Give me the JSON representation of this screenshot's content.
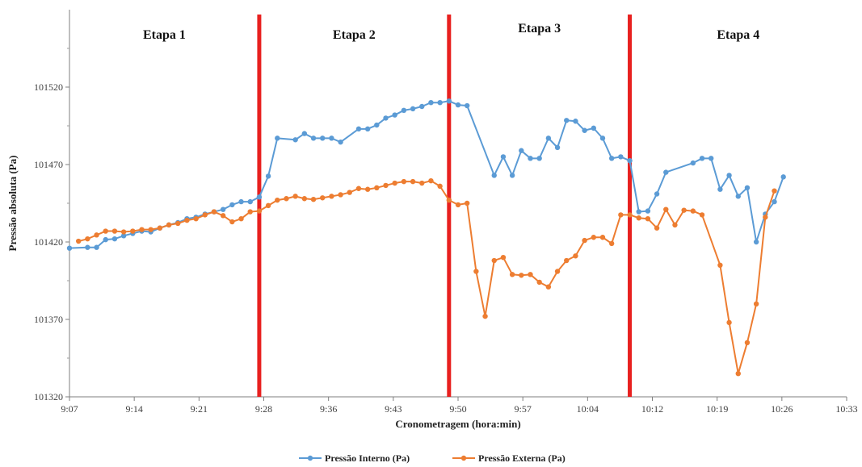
{
  "chart_data": {
    "type": "line",
    "xlabel": "Cronometragem  (hora:min)",
    "ylabel": "Pressão absoluta (Pa)",
    "ylim": [
      101320,
      101570
    ],
    "y_ticks": [
      101320,
      101370,
      101420,
      101470,
      101520
    ],
    "y_tick_labels": [
      "101320",
      "101370",
      "101420",
      "101470",
      "101520"
    ],
    "xlim": [
      "9:07",
      "10:33"
    ],
    "x_tick_labels": [
      "9:07",
      "9:14",
      "9:21",
      "9:28",
      "9:36",
      "9:43",
      "9:50",
      "9:57",
      "10:04",
      "10:12",
      "10:19",
      "10:26",
      "10:33"
    ],
    "grid": false,
    "legend_position": "bottom",
    "stages": [
      {
        "label": "Etapa 1"
      },
      {
        "label": "Etapa 2",
        "start": "9:28"
      },
      {
        "label": "Etapa 3",
        "start": "9:49"
      },
      {
        "label": "Etapa 4",
        "start": "10:09"
      }
    ],
    "series": [
      {
        "name": "Pressão Interno (Pa)",
        "color": "#5b9bd5",
        "points": [
          [
            "9:07",
            101416
          ],
          [
            "9:09",
            101416.5
          ],
          [
            "9:10",
            101416.5
          ],
          [
            "9:11",
            101421.5
          ],
          [
            "9:12",
            101422
          ],
          [
            "9:13",
            101424
          ],
          [
            "9:14",
            101425.5
          ],
          [
            "9:15",
            101427
          ],
          [
            "9:16",
            101426.5
          ],
          [
            "9:17",
            101429
          ],
          [
            "9:18",
            101431
          ],
          [
            "9:19",
            101432.5
          ],
          [
            "9:20",
            101435
          ],
          [
            "9:21",
            101436
          ],
          [
            "9:22",
            101438
          ],
          [
            "9:23",
            101439.5
          ],
          [
            "9:24",
            101441
          ],
          [
            "9:25",
            101444
          ],
          [
            "9:26",
            101446
          ],
          [
            "9:27",
            101446
          ],
          [
            "9:28",
            101449
          ],
          [
            "9:29",
            101462.5
          ],
          [
            "9:30",
            101487
          ],
          [
            "9:32",
            101486
          ],
          [
            "9:33",
            101490
          ],
          [
            "9:34",
            101487
          ],
          [
            "9:35",
            101487
          ],
          [
            "9:36",
            101487
          ],
          [
            "9:37",
            101484.5
          ],
          [
            "9:39",
            101493
          ],
          [
            "9:40",
            101493
          ],
          [
            "9:41",
            101495.5
          ],
          [
            "9:42",
            101500
          ],
          [
            "9:43",
            101502
          ],
          [
            "9:44",
            101505
          ],
          [
            "9:45",
            101506
          ],
          [
            "9:46",
            101507.5
          ],
          [
            "9:47",
            101510
          ],
          [
            "9:48",
            101510
          ],
          [
            "9:49",
            101511
          ],
          [
            "9:50",
            101508.5
          ],
          [
            "9:51",
            101508
          ],
          [
            "9:54",
            101463
          ],
          [
            "9:55",
            101475
          ],
          [
            "9:56",
            101463
          ],
          [
            "9:57",
            101479
          ],
          [
            "9:58",
            101474
          ],
          [
            "9:59",
            101474
          ],
          [
            "10:00",
            101487
          ],
          [
            "10:01",
            101481
          ],
          [
            "10:02",
            101498.5
          ],
          [
            "10:03",
            101498
          ],
          [
            "10:04",
            101492
          ],
          [
            "10:05",
            101493.5
          ],
          [
            "10:06",
            101487
          ],
          [
            "10:07",
            101474
          ],
          [
            "10:08",
            101475
          ],
          [
            "10:09",
            101472.5
          ],
          [
            "10:10",
            101439.5
          ],
          [
            "10:11",
            101440
          ],
          [
            "10:12",
            101451
          ],
          [
            "10:13",
            101465
          ],
          [
            "10:16",
            101471
          ],
          [
            "10:17",
            101474
          ],
          [
            "10:18",
            101474
          ],
          [
            "10:19",
            101454
          ],
          [
            "10:20",
            101463
          ],
          [
            "10:21",
            101449.5
          ],
          [
            "10:22",
            101455
          ],
          [
            "10:23",
            101420
          ],
          [
            "10:24",
            101438
          ],
          [
            "10:25",
            101446
          ],
          [
            "10:26",
            101462
          ]
        ]
      },
      {
        "name": "Pressão Externa (Pa)",
        "color": "#ed7d31",
        "points": [
          [
            "9:08",
            101420.5
          ],
          [
            "9:09",
            101422
          ],
          [
            "9:10",
            101424.5
          ],
          [
            "9:11",
            101427
          ],
          [
            "9:12",
            101427
          ],
          [
            "9:13",
            101426.5
          ],
          [
            "9:14",
            101427
          ],
          [
            "9:15",
            101428
          ],
          [
            "9:16",
            101428
          ],
          [
            "9:17",
            101429
          ],
          [
            "9:18",
            101431
          ],
          [
            "9:19",
            101432
          ],
          [
            "9:20",
            101434
          ],
          [
            "9:21",
            101435
          ],
          [
            "9:22",
            101437.5
          ],
          [
            "9:23",
            101439.5
          ],
          [
            "9:24",
            101437
          ],
          [
            "9:25",
            101433
          ],
          [
            "9:26",
            101435
          ],
          [
            "9:27",
            101439.5
          ],
          [
            "9:28",
            101440
          ],
          [
            "9:29",
            101443.5
          ],
          [
            "9:30",
            101447
          ],
          [
            "9:31",
            101448
          ],
          [
            "9:32",
            101449.5
          ],
          [
            "9:33",
            101448
          ],
          [
            "9:34",
            101447.5
          ],
          [
            "9:35",
            101448.5
          ],
          [
            "9:36",
            101449.5
          ],
          [
            "9:37",
            101450.5
          ],
          [
            "9:38",
            101452
          ],
          [
            "9:39",
            101454.5
          ],
          [
            "9:40",
            101454
          ],
          [
            "9:41",
            101455
          ],
          [
            "9:42",
            101456.5
          ],
          [
            "9:43",
            101458
          ],
          [
            "9:44",
            101459
          ],
          [
            "9:45",
            101459
          ],
          [
            "9:46",
            101458
          ],
          [
            "9:47",
            101459.5
          ],
          [
            "9:48",
            101456
          ],
          [
            "9:49",
            101447
          ],
          [
            "9:50",
            101444
          ],
          [
            "9:51",
            101445
          ],
          [
            "9:52",
            101401
          ],
          [
            "9:53",
            101372
          ],
          [
            "9:54",
            101408
          ],
          [
            "9:55",
            101410
          ],
          [
            "9:56",
            101399
          ],
          [
            "9:57",
            101398.5
          ],
          [
            "9:58",
            101399
          ],
          [
            "9:59",
            101394
          ],
          [
            "10:00",
            101391
          ],
          [
            "10:01",
            101401
          ],
          [
            "10:02",
            101408
          ],
          [
            "10:03",
            101411
          ],
          [
            "10:04",
            101421
          ],
          [
            "10:05",
            101423
          ],
          [
            "10:06",
            101423
          ],
          [
            "10:07",
            101419
          ],
          [
            "10:08",
            101437.5
          ],
          [
            "10:09",
            101437.5
          ],
          [
            "10:10",
            101435.5
          ],
          [
            "10:11",
            101435
          ],
          [
            "10:12",
            101429
          ],
          [
            "10:13",
            101441
          ],
          [
            "10:14",
            101431
          ],
          [
            "10:15",
            101440.5
          ],
          [
            "10:16",
            101440
          ],
          [
            "10:17",
            101437.5
          ],
          [
            "10:19",
            101405
          ],
          [
            "10:20",
            101368
          ],
          [
            "10:21",
            101335
          ],
          [
            "10:22",
            101355
          ],
          [
            "10:23",
            101380
          ],
          [
            "10:24",
            101436
          ],
          [
            "10:25",
            101453
          ]
        ]
      }
    ]
  }
}
